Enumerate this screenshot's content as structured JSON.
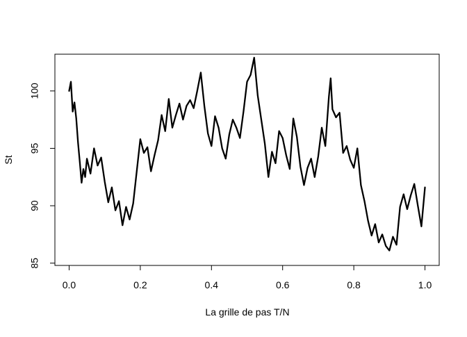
{
  "chart_data": {
    "type": "line",
    "title": "",
    "xlabel": "La grille de pas T/N",
    "ylabel": "St",
    "xlim": [
      -0.04,
      1.04
    ],
    "ylim": [
      84.8,
      103.2
    ],
    "x_ticks": [
      0.0,
      0.2,
      0.4,
      0.6,
      0.8,
      1.0
    ],
    "x_tick_labels": [
      "0.0",
      "0.2",
      "0.4",
      "0.6",
      "0.8",
      "1.0"
    ],
    "y_ticks": [
      85,
      90,
      95,
      100
    ],
    "y_tick_labels": [
      "85",
      "90",
      "95",
      "100"
    ],
    "grid": false,
    "legend": "none",
    "line_color": "#000000",
    "series": [
      {
        "x": [
          0.0,
          0.005,
          0.01,
          0.015,
          0.02,
          0.025,
          0.03,
          0.035,
          0.04,
          0.045,
          0.05,
          0.06,
          0.07,
          0.08,
          0.09,
          0.1,
          0.11,
          0.12,
          0.13,
          0.14,
          0.15,
          0.16,
          0.17,
          0.18,
          0.19,
          0.2,
          0.21,
          0.22,
          0.23,
          0.24,
          0.25,
          0.26,
          0.27,
          0.28,
          0.29,
          0.3,
          0.31,
          0.32,
          0.33,
          0.34,
          0.35,
          0.36,
          0.37,
          0.38,
          0.39,
          0.4,
          0.41,
          0.42,
          0.43,
          0.44,
          0.45,
          0.46,
          0.47,
          0.48,
          0.49,
          0.5,
          0.51,
          0.52,
          0.53,
          0.54,
          0.55,
          0.56,
          0.57,
          0.58,
          0.59,
          0.6,
          0.61,
          0.62,
          0.63,
          0.64,
          0.65,
          0.66,
          0.67,
          0.68,
          0.69,
          0.7,
          0.71,
          0.72,
          0.73,
          0.735,
          0.74,
          0.75,
          0.76,
          0.77,
          0.78,
          0.79,
          0.8,
          0.81,
          0.82,
          0.83,
          0.84,
          0.85,
          0.86,
          0.87,
          0.88,
          0.89,
          0.9,
          0.91,
          0.92,
          0.93,
          0.94,
          0.95,
          0.96,
          0.97,
          0.98,
          0.99,
          1.0
        ],
        "y": [
          100.0,
          100.8,
          98.2,
          99.0,
          97.6,
          95.5,
          93.8,
          92.0,
          93.2,
          92.5,
          94.1,
          92.8,
          95.0,
          93.5,
          94.2,
          92.1,
          90.3,
          91.6,
          89.6,
          90.4,
          88.3,
          89.9,
          88.8,
          90.2,
          93.0,
          95.8,
          94.6,
          95.1,
          93.0,
          94.4,
          95.7,
          97.9,
          96.5,
          99.3,
          96.8,
          97.9,
          98.9,
          97.5,
          98.7,
          99.2,
          98.5,
          100.0,
          101.6,
          98.7,
          96.3,
          95.2,
          97.8,
          96.8,
          95.0,
          94.1,
          96.2,
          97.5,
          96.8,
          95.9,
          98.2,
          100.8,
          101.4,
          102.9,
          99.6,
          97.5,
          95.4,
          92.5,
          94.7,
          93.7,
          96.5,
          95.9,
          94.4,
          93.2,
          97.6,
          96.0,
          93.4,
          91.8,
          93.3,
          94.1,
          92.5,
          94.3,
          96.8,
          95.2,
          99.5,
          101.1,
          98.4,
          97.7,
          98.1,
          94.6,
          95.2,
          94.0,
          93.3,
          95.0,
          91.8,
          90.4,
          88.7,
          87.4,
          88.4,
          86.8,
          87.5,
          86.5,
          86.1,
          87.3,
          86.6,
          89.9,
          91.0,
          89.7,
          90.9,
          91.9,
          90.0,
          88.2,
          91.6
        ]
      }
    ]
  }
}
